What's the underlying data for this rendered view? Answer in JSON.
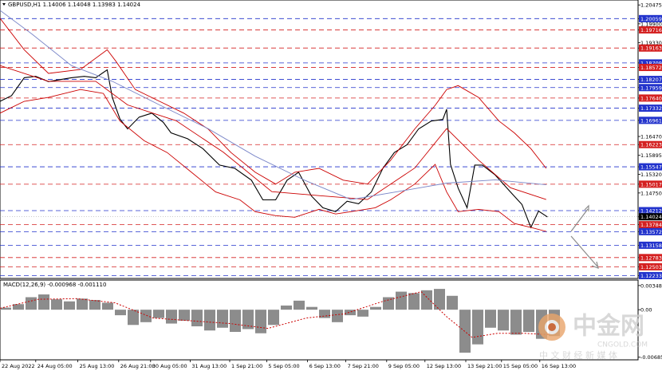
{
  "chart_data": [
    {
      "type": "line",
      "title": "GBPUSD,H1  1.14006 1.14048 1.13983 1.14024",
      "xlim": [
        0,
        500
      ],
      "xticks": [
        {
          "value": 0,
          "label": "22 Aug 2022"
        },
        {
          "value": 28,
          "label": "24 Aug 05:00"
        },
        {
          "value": 61,
          "label": "25 Aug 13:00"
        },
        {
          "value": 93,
          "label": "26 Aug 21:00"
        },
        {
          "value": 118,
          "label": "30 Aug 05:00"
        },
        {
          "value": 149,
          "label": "31 Aug 13:00"
        },
        {
          "value": 180,
          "label": "1 Sep 21:00"
        },
        {
          "value": 209,
          "label": "5 Sep 05:00"
        },
        {
          "value": 241,
          "label": "6 Sep 13:00"
        },
        {
          "value": 271,
          "label": "7 Sep 21:00"
        },
        {
          "value": 303,
          "label": "9 Sep 05:00"
        },
        {
          "value": 333,
          "label": "12 Sep 13:00"
        },
        {
          "value": 365,
          "label": "13 Sep 21:00"
        },
        {
          "value": 393,
          "label": "15 Sep 05:00"
        },
        {
          "value": 423,
          "label": "16 Sep 13:00"
        }
      ],
      "ylim": [
        1.1222,
        1.2048
      ],
      "yticks": [
        1.20475,
        1.20059,
        {
          "value": 1.199,
          "label": "1.19900"
        },
        1.19716,
        {
          "value": 1.1933,
          "label": "1.19330"
        },
        1.19163,
        1.18709,
        1.18572,
        1.18207,
        1.17959,
        {
          "value": 1.1764,
          "label": "1.17640"
        },
        1.17332,
        1.16961,
        {
          "value": 1.1647,
          "label": "1.16470"
        },
        1.16223,
        1.15895,
        1.15547,
        {
          "value": 1.1532,
          "label": "1.15320"
        },
        1.15017,
        {
          "value": 1.1475,
          "label": "1.14750"
        },
        1.14212,
        1.14024,
        1.13784,
        1.13572,
        1.13158,
        1.12783,
        1.12503,
        1.12233
      ],
      "ytick_styles": [
        "plain",
        "blue",
        "plain",
        "red",
        "plain",
        "red",
        "blue",
        "red",
        "blue",
        "blue",
        "red",
        "blue",
        "blue",
        "plain",
        "red",
        "plain",
        "blue",
        "plain",
        "red",
        "plain",
        "blue",
        "current",
        "red",
        "blue",
        "blue",
        "red",
        "red",
        "blue"
      ],
      "series": [
        {
          "color": "#000000",
          "x": [
            0,
            9,
            19,
            28,
            38,
            47,
            56,
            66,
            75,
            84,
            88,
            94,
            100,
            109,
            119,
            128,
            134,
            147,
            159,
            172,
            184,
            197,
            206,
            216,
            225,
            234,
            244,
            253,
            263,
            272,
            281,
            291,
            300,
            309,
            319,
            328,
            338,
            347,
            350,
            353,
            359,
            366,
            372,
            378,
            388,
            400,
            409,
            416,
            422,
            429
          ],
          "values": [
            1.1754,
            1.1771,
            1.1826,
            1.183,
            1.1814,
            1.182,
            1.1826,
            1.183,
            1.1826,
            1.185,
            1.1766,
            1.17,
            1.167,
            1.1706,
            1.1718,
            1.169,
            1.1658,
            1.164,
            1.161,
            1.156,
            1.155,
            1.1514,
            1.1454,
            1.1454,
            1.1514,
            1.1538,
            1.1466,
            1.143,
            1.1418,
            1.145,
            1.1442,
            1.1478,
            1.155,
            1.1598,
            1.1622,
            1.167,
            1.1694,
            1.1699,
            1.173,
            1.1562,
            1.149,
            1.143,
            1.156,
            1.156,
            1.153,
            1.1478,
            1.144,
            1.137,
            1.142,
            1.1402
          ]
        },
        {
          "color": "#cc0000",
          "x": [
            0,
            19,
            38,
            63,
            84,
            91,
            106,
            125,
            144,
            163,
            181,
            200,
            216,
            231,
            250,
            269,
            288,
            306,
            325,
            341,
            350,
            359,
            375,
            391,
            403,
            416,
            428
          ],
          "values": [
            1.2007,
            1.1911,
            1.1839,
            1.1851,
            1.1911,
            1.1875,
            1.179,
            1.1754,
            1.1718,
            1.167,
            1.1598,
            1.1538,
            1.1502,
            1.1538,
            1.155,
            1.1514,
            1.1502,
            1.1574,
            1.167,
            1.1742,
            1.179,
            1.1802,
            1.1766,
            1.1694,
            1.1658,
            1.161,
            1.155
          ]
        },
        {
          "color": "#cc0000",
          "x": [
            0,
            19,
            38,
            63,
            81,
            94,
            113,
            131,
            150,
            169,
            188,
            200,
            216,
            231,
            250,
            263,
            275,
            294,
            306,
            325,
            341,
            350,
            359,
            375,
            391,
            403,
            416,
            428
          ],
          "values": [
            1.1718,
            1.1754,
            1.1766,
            1.179,
            1.1778,
            1.1694,
            1.1634,
            1.1598,
            1.1538,
            1.1478,
            1.1454,
            1.1418,
            1.1406,
            1.1401,
            1.1425,
            1.1411,
            1.1418,
            1.143,
            1.1454,
            1.1502,
            1.1562,
            1.1478,
            1.1418,
            1.1425,
            1.1418,
            1.1382,
            1.137,
            1.1358
          ]
        },
        {
          "color": "#cc0000",
          "x": [
            0,
            38,
            75,
            100,
            138,
            175,
            213,
            250,
            288,
            325,
            350,
            375,
            400,
            428
          ],
          "values": [
            1.1863,
            1.1815,
            1.1815,
            1.1743,
            1.1695,
            1.1599,
            1.1479,
            1.1467,
            1.1455,
            1.1551,
            1.1671,
            1.1575,
            1.1491,
            1.1455
          ]
        },
        {
          "color": "#7a86c8",
          "x": [
            0,
            25,
            56,
            88,
            125,
            163,
            200,
            238,
            275,
            313,
            350,
            388,
            428
          ],
          "values": [
            1.2031,
            1.1959,
            1.1863,
            1.1815,
            1.1743,
            1.1671,
            1.1587,
            1.1515,
            1.1455,
            1.148,
            1.1505,
            1.1515,
            1.15
          ]
        }
      ]
    },
    {
      "type": "bar",
      "title": "MACD(12,26,9) -0.000968 -0.001110",
      "xlim": [
        0,
        500
      ],
      "ylim": [
        -0.007,
        0.0037
      ],
      "yticks": [
        0.003485,
        {
          "value": 0,
          "label": "0.00"
        },
        -0.006854
      ],
      "series": [
        {
          "color": "#8c8c8c",
          "x": [
            0,
            10,
            20,
            30,
            40,
            50,
            60,
            70,
            80,
            90,
            100,
            110,
            120,
            130,
            140,
            150,
            160,
            170,
            180,
            190,
            200,
            210,
            220,
            230,
            240,
            250,
            260,
            270,
            280,
            290,
            300,
            310,
            320,
            330,
            340,
            350,
            360,
            370,
            380,
            390,
            400,
            410,
            420,
            430
          ],
          "values": [
            0.0003,
            0.0008,
            0.0018,
            0.0022,
            0.0015,
            0.0012,
            0.0016,
            0.0014,
            0.001,
            -0.0008,
            -0.0022,
            -0.0018,
            -0.0012,
            -0.002,
            -0.0016,
            -0.0024,
            -0.003,
            -0.0026,
            -0.0032,
            -0.0028,
            -0.0034,
            -0.0022,
            0.0006,
            0.0013,
            0.0004,
            -0.0012,
            -0.0018,
            -0.0008,
            -0.001,
            0.0004,
            0.0018,
            0.0026,
            0.0024,
            0.0028,
            0.003,
            0.002,
            -0.0062,
            -0.005,
            -0.0026,
            -0.003,
            -0.0036,
            -0.0032,
            -0.0042,
            -0.0038
          ]
        },
        {
          "color": "#cc0000",
          "x": [
            0,
            30,
            60,
            90,
            120,
            150,
            180,
            210,
            240,
            270,
            300,
            330,
            350,
            370,
            390,
            410,
            430
          ],
          "values": [
            0.0002,
            0.0015,
            0.0016,
            0.001,
            -0.0012,
            -0.0016,
            -0.002,
            -0.0027,
            -0.0012,
            -0.0006,
            0.0012,
            0.0026,
            -0.001,
            -0.004,
            -0.0034,
            -0.0034,
            -0.0036
          ]
        }
      ]
    }
  ],
  "watermark": {
    "name": "中金网",
    "domain": "CNGOLD.COM",
    "slogan": "中 文 财 经 新 媒 体"
  }
}
